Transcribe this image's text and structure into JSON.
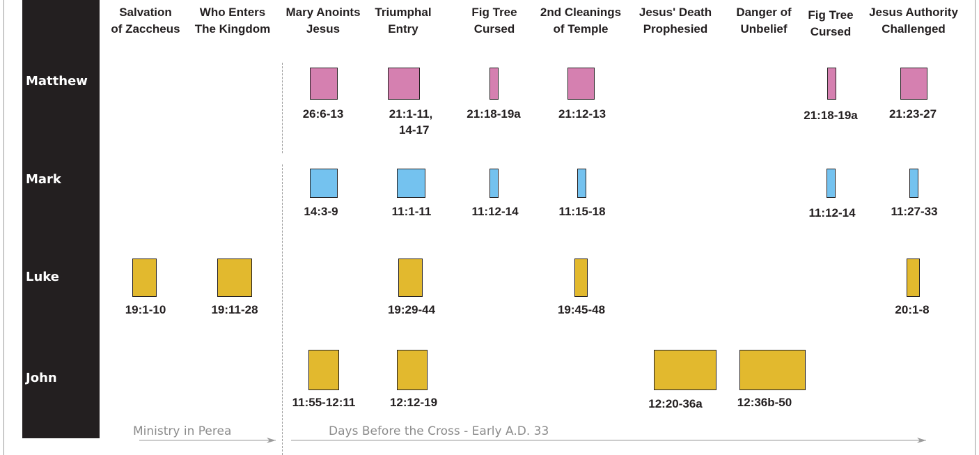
{
  "colors": {
    "matthew": "#d580b0",
    "mark": "#74c2ef",
    "luke": "#e2b92e",
    "john": "#e2b92e",
    "sidebar": "#231f20",
    "muted": "#8b8b8b"
  },
  "gospels": [
    "Matthew",
    "Mark",
    "Luke",
    "John"
  ],
  "events": [
    {
      "line1": "Salvation",
      "line2": "of Zaccheus"
    },
    {
      "line1": "Who Enters",
      "line2": "The Kingdom"
    },
    {
      "line1": "Mary Anoints",
      "line2": "Jesus"
    },
    {
      "line1": "Triumphal",
      "line2": "Entry"
    },
    {
      "line1": "Fig Tree",
      "line2": "Cursed"
    },
    {
      "line1": "2nd Cleanings",
      "line2": "of Temple"
    },
    {
      "line1": "Jesus' Death",
      "line2": "Prophesied"
    },
    {
      "line1": "Danger of",
      "line2": "Unbelief"
    },
    {
      "line1": "Fig Tree",
      "line2": "Cursed"
    },
    {
      "line1": "Jesus Authority",
      "line2": "Challenged"
    }
  ],
  "passages": {
    "matthew": [
      "26:6-13",
      "21:1-11,\n   14-17",
      "21:18-19a",
      "21:12-13",
      "21:18-19a",
      "21:23-27"
    ],
    "mark": [
      "14:3-9",
      "11:1-11",
      "11:12-14",
      "11:15-18",
      "11:12-14",
      "11:27-33"
    ],
    "luke": [
      "19:1-10",
      "19:11-28",
      "19:29-44",
      "19:45-48",
      "20:1-8"
    ],
    "john": [
      "11:55-12:11",
      "12:12-19",
      "12:20-36a",
      "12:36b-50"
    ]
  },
  "periods": {
    "perea": "Ministry in Perea",
    "cross": "Days Before the Cross - Early A.D. 33"
  }
}
